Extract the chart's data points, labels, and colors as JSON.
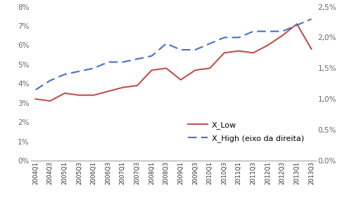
{
  "quarters": [
    "2004Q1",
    "2004Q3",
    "2005Q1",
    "2005Q3",
    "2006Q1",
    "2006Q3",
    "2007Q1",
    "2007Q3",
    "2008Q1",
    "2008Q3",
    "2009Q1",
    "2009Q3",
    "2010Q1",
    "2010Q3",
    "2011Q1",
    "2011Q3",
    "2012Q1",
    "2012Q3",
    "2013Q1",
    "2013Q3"
  ],
  "x_low": [
    0.032,
    0.031,
    0.035,
    0.034,
    0.034,
    0.036,
    0.038,
    0.039,
    0.047,
    0.048,
    0.042,
    0.047,
    0.048,
    0.056,
    0.057,
    0.056,
    0.06,
    0.065,
    0.071,
    0.058
  ],
  "x_high": [
    0.0115,
    0.013,
    0.014,
    0.0145,
    0.015,
    0.016,
    0.016,
    0.0165,
    0.017,
    0.019,
    0.018,
    0.018,
    0.019,
    0.02,
    0.02,
    0.021,
    0.021,
    0.021,
    0.022,
    0.023
  ],
  "low_color": "#c0504d",
  "high_color": "#4472c4",
  "ylim_left": [
    0.0,
    0.08
  ],
  "ylim_right": [
    0.0,
    0.025
  ],
  "yticks_left": [
    0.0,
    0.01,
    0.02,
    0.03,
    0.04,
    0.05,
    0.06,
    0.07,
    0.08
  ],
  "yticks_right": [
    0.0,
    0.005,
    0.01,
    0.015,
    0.02,
    0.025
  ],
  "legend_labels": [
    "X_Low",
    "X_High (eixo da direita)"
  ],
  "background_color": "#ffffff"
}
